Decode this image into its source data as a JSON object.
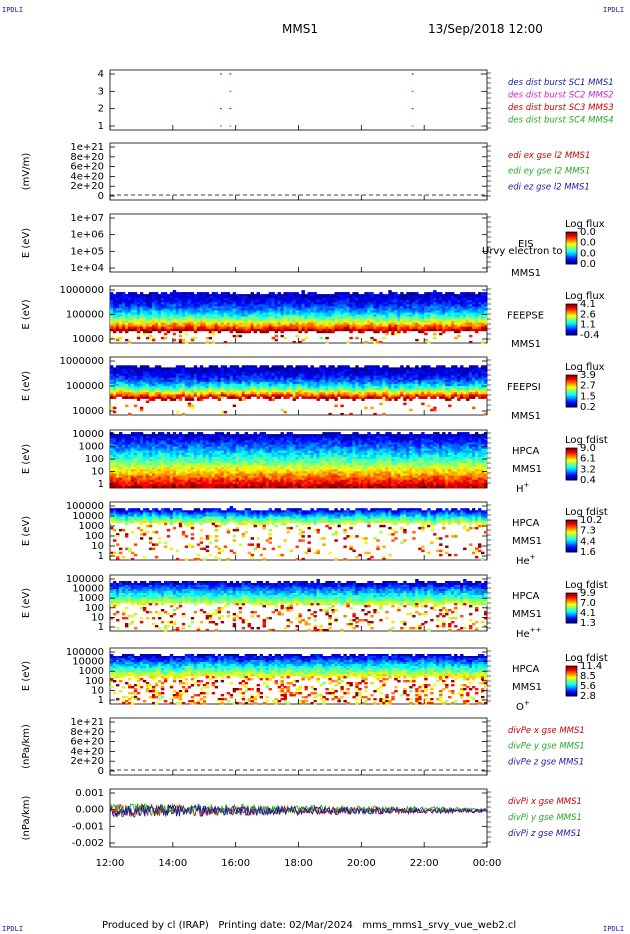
{
  "header": {
    "corner_tag": "IPDLI",
    "mission": "MMS1",
    "datetime": "13/Sep/2018 12:00"
  },
  "footer": {
    "text": "Produced by cl (IRAP)   Printing date: 02/Mar/2024   mms_mms1_srvy_vue_web2.cl"
  },
  "chart_data": [
    {
      "type": "line",
      "id": "burst",
      "yticks": [
        "4",
        "3",
        "2",
        "1"
      ],
      "series": [
        {
          "name": "des dist burst SC1 MMS1",
          "color": "#1a1aa6"
        },
        {
          "name": "des dist burst SC2 MMS2",
          "color": "#cc22cc"
        },
        {
          "name": "des dist burst SC3 MMS3",
          "color": "#cc0000"
        },
        {
          "name": "des dist burst SC4 MMS4",
          "color": "#22aa22"
        }
      ],
      "burst_times_h": [
        15.5,
        15.8,
        21.6,
        23.8
      ]
    },
    {
      "type": "line",
      "id": "edi",
      "ylabel": "(mV/m)",
      "yticks": [
        "1e+21",
        "8e+20",
        "6e+20",
        "4e+20",
        "2e+20",
        "0"
      ],
      "series": [
        {
          "name": "edi ex gse l2 MMS1",
          "color": "#cc0000"
        },
        {
          "name": "edi ey gse l2 MMS1",
          "color": "#22aa22"
        },
        {
          "name": "edi ez gse l2 MMS1",
          "color": "#1a1aa6"
        }
      ]
    },
    {
      "type": "heatmap",
      "id": "eis",
      "ylabel": "E (eV)",
      "yticks": [
        "1e+07",
        "1e+06",
        "1e+05",
        "1e+04"
      ],
      "labels": [
        "EIS",
        "MMS1"
      ],
      "overlay_text": "Urvy electron to",
      "colorbar": {
        "title": "Log flux",
        "ticks": [
          "0.0",
          "0.0",
          "0.0",
          "0.0"
        ]
      }
    },
    {
      "type": "heatmap",
      "id": "feepse",
      "ylabel": "E (eV)",
      "yticks": [
        "1000000",
        "100000",
        "10000"
      ],
      "labels": [
        "FEEPSE",
        "MMS1"
      ],
      "colorbar": {
        "title": "Log flux",
        "ticks": [
          "4.1",
          "2.6",
          "1.1",
          "-0.4"
        ]
      }
    },
    {
      "type": "heatmap",
      "id": "feepsi",
      "ylabel": "E (eV)",
      "yticks": [
        "1000000",
        "100000",
        "10000"
      ],
      "labels": [
        "FEEPSI",
        "MMS1"
      ],
      "colorbar": {
        "title": "Log flux",
        "ticks": [
          "3.9",
          "2.7",
          "1.5",
          "0.2"
        ]
      }
    },
    {
      "type": "heatmap",
      "id": "hpca-h",
      "ylabel": "E (eV)",
      "yticks": [
        "10000",
        "1000",
        "100",
        "10",
        "1"
      ],
      "labels": [
        "HPCA",
        "MMS1"
      ],
      "species": "H",
      "sup": "+",
      "colorbar": {
        "title": "Log fdist",
        "ticks": [
          "9.0",
          "6.1",
          "3.2",
          "0.4"
        ]
      }
    },
    {
      "type": "heatmap",
      "id": "hpca-he",
      "ylabel": "E (eV)",
      "yticks": [
        "100000",
        "10000",
        "1000",
        "100",
        "10",
        "1"
      ],
      "labels": [
        "HPCA",
        "MMS1"
      ],
      "species": "He",
      "sup": "+",
      "colorbar": {
        "title": "Log fdist",
        "ticks": [
          "10.2",
          "7.3",
          "4.4",
          "1.6"
        ]
      }
    },
    {
      "type": "heatmap",
      "id": "hpca-he2",
      "ylabel": "E (eV)",
      "yticks": [
        "100000",
        "10000",
        "1000",
        "100",
        "10",
        "1"
      ],
      "labels": [
        "HPCA",
        "MMS1"
      ],
      "species": "He",
      "sup": "++",
      "colorbar": {
        "title": "Log fdist",
        "ticks": [
          "9.9",
          "7.0",
          "4.1",
          "1.3"
        ]
      }
    },
    {
      "type": "heatmap",
      "id": "hpca-o",
      "ylabel": "E (eV)",
      "yticks": [
        "100000",
        "10000",
        "1000",
        "100",
        "10",
        "1"
      ],
      "labels": [
        "HPCA",
        "MMS1"
      ],
      "species": "O",
      "sup": "+",
      "colorbar": {
        "title": "Log fdist",
        "ticks": [
          "11.4",
          "8.5",
          "5.6",
          "2.8"
        ]
      }
    },
    {
      "type": "line",
      "id": "divpe",
      "ylabel": "(nPa/km)",
      "yticks": [
        "1e+21",
        "8e+20",
        "6e+20",
        "4e+20",
        "2e+20",
        "0"
      ],
      "series": [
        {
          "name": "divPe x gse MMS1",
          "color": "#cc0000"
        },
        {
          "name": "divPe y gse MMS1",
          "color": "#22aa22"
        },
        {
          "name": "divPe z gse MMS1",
          "color": "#1a1aa6"
        }
      ]
    },
    {
      "type": "line",
      "id": "divpi",
      "ylabel": "(nPa/km)",
      "yticks": [
        "0.001",
        "0.000",
        "-0.001",
        "-0.002"
      ],
      "ylim": [
        -0.0025,
        0.0015
      ],
      "series": [
        {
          "name": "divPi x gse MMS1",
          "color": "#cc0000"
        },
        {
          "name": "divPi y gse MMS1",
          "color": "#22aa22"
        },
        {
          "name": "divPi z gse MMS1",
          "color": "#1a1aa6"
        }
      ]
    }
  ],
  "xaxis": {
    "ticks": [
      "12:00",
      "14:00",
      "16:00",
      "18:00",
      "20:00",
      "22:00",
      "00:00"
    ],
    "range_h": [
      12,
      24
    ]
  }
}
